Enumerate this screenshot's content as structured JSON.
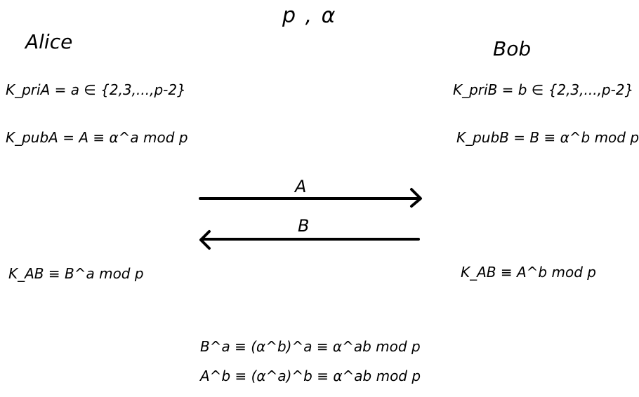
{
  "title": "p , α",
  "alice": {
    "name": "Alice",
    "private_key": "K_priA = a ∈ {2,3,...,p-2}",
    "public_key": "K_pubA = A ≡ α^a mod p",
    "shared_key": "K_AB ≡ B^a mod p"
  },
  "bob": {
    "name": "Bob",
    "private_key": "K_priB = b ∈ {2,3,...,p-2}",
    "public_key": "K_pubB = B ≡ α^b mod p",
    "shared_key": "K_AB ≡ A^b mod p"
  },
  "exchange": {
    "a_to_b_label": "A",
    "b_to_a_label": "B"
  },
  "proof": [
    "B^a ≡ (α^b)^a ≡ α^ab mod p",
    "A^b ≡ (α^a)^b ≡ α^ab mod p"
  ]
}
